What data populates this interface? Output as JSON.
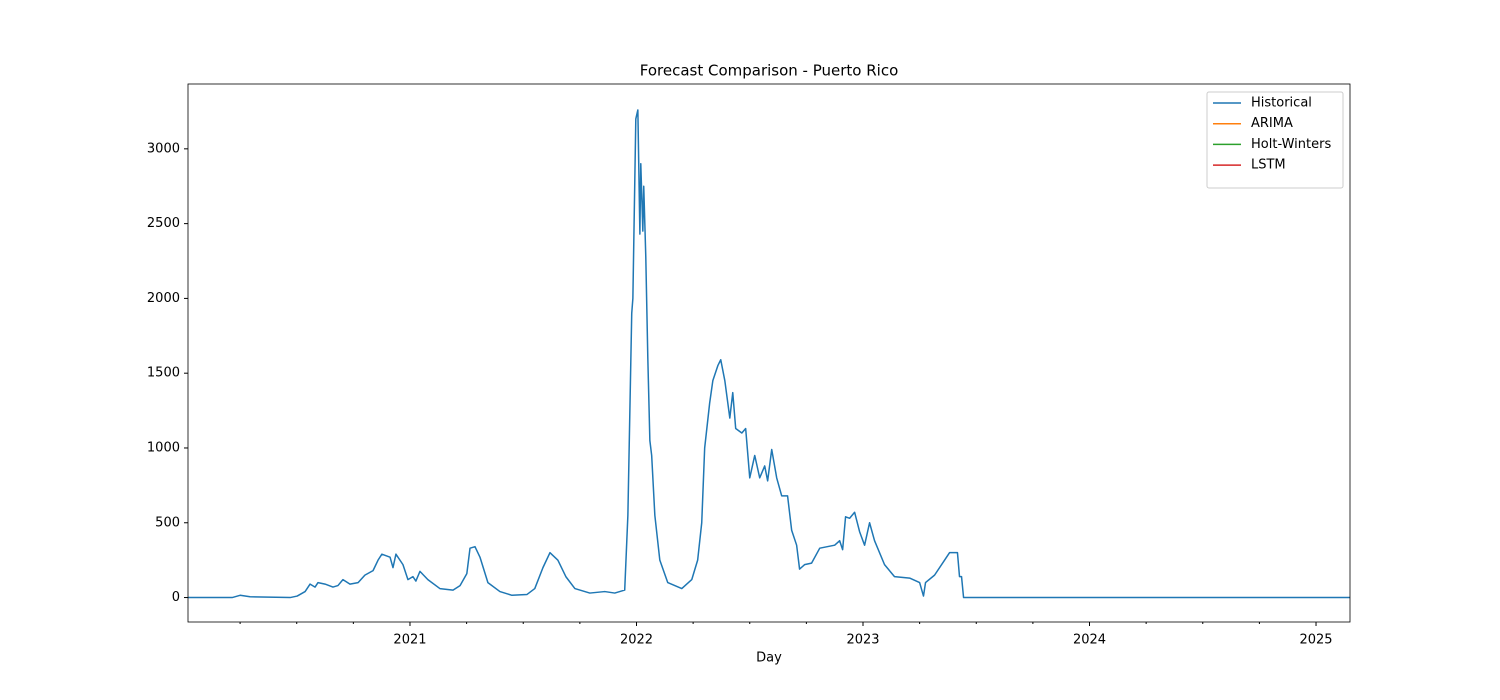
{
  "chart_data": {
    "type": "line",
    "title": "Forecast Comparison - Puerto Rico",
    "x_label": "Day",
    "xlim": [
      2020.02,
      2025.15
    ],
    "ylim": [
      -163.5,
      3433.5
    ],
    "xticks": [
      2021,
      2022,
      2023,
      2024,
      2025
    ],
    "xminorticks": [
      2020.25,
      2020.5,
      2020.75,
      2021.25,
      2021.5,
      2021.75,
      2022.25,
      2022.5,
      2022.75,
      2023.25,
      2023.5,
      2023.75,
      2024.25,
      2024.5,
      2024.75
    ],
    "yticks": [
      0,
      500,
      1000,
      1500,
      2000,
      2500,
      3000
    ],
    "legend": "upper right",
    "series": [
      {
        "name": "Historical",
        "color": "#1f77b4",
        "x": [
          2020.02,
          2020.215,
          2020.25,
          2020.294,
          2020.471,
          2020.502,
          2020.537,
          2020.559,
          2020.581,
          2020.594,
          2020.625,
          2020.66,
          2020.682,
          2020.704,
          2020.735,
          2020.771,
          2020.801,
          2020.837,
          2020.859,
          2020.876,
          2020.912,
          2020.925,
          2020.938,
          2020.969,
          2020.991,
          2021.013,
          2021.026,
          2021.044,
          2021.079,
          2021.132,
          2021.19,
          2021.221,
          2021.251,
          2021.265,
          2021.287,
          2021.309,
          2021.344,
          2021.397,
          2021.45,
          2021.516,
          2021.551,
          2021.587,
          2021.618,
          2021.653,
          2021.688,
          2021.728,
          2021.794,
          2021.86,
          2021.904,
          2021.948,
          2021.962,
          2021.979,
          2021.984,
          2021.997,
          2022.006,
          2022.015,
          2022.019,
          2022.028,
          2022.032,
          2022.041,
          2022.05,
          2022.059,
          2022.067,
          2022.081,
          2022.103,
          2022.138,
          2022.2,
          2022.244,
          2022.27,
          2022.288,
          2022.301,
          2022.323,
          2022.337,
          2022.359,
          2022.372,
          2022.39,
          2022.412,
          2022.425,
          2022.438,
          2022.465,
          2022.482,
          2022.5,
          2022.522,
          2022.544,
          2022.566,
          2022.579,
          2022.597,
          2022.619,
          2022.641,
          2022.667,
          2022.685,
          2022.707,
          2022.72,
          2022.742,
          2022.773,
          2022.809,
          2022.875,
          2022.897,
          2022.91,
          2022.923,
          2022.941,
          2022.963,
          2022.985,
          2023.007,
          2023.029,
          2023.051,
          2023.095,
          2023.139,
          2023.206,
          2023.25,
          2023.267,
          2023.276,
          2023.316,
          2023.36,
          2023.382,
          2023.417,
          2023.426,
          2023.435,
          2023.444,
          2025.15
        ],
        "values": [
          0,
          0,
          15,
          5,
          0,
          10,
          40,
          90,
          70,
          100,
          90,
          70,
          80,
          120,
          90,
          100,
          150,
          180,
          250,
          290,
          270,
          200,
          290,
          220,
          120,
          140,
          110,
          175,
          120,
          60,
          50,
          80,
          160,
          330,
          340,
          270,
          100,
          40,
          15,
          20,
          60,
          200,
          300,
          250,
          140,
          60,
          30,
          40,
          30,
          50,
          550,
          1900,
          2000,
          3200,
          3260,
          2430,
          2900,
          2450,
          2750,
          2280,
          1600,
          1050,
          950,
          550,
          250,
          100,
          60,
          120,
          250,
          500,
          1000,
          1300,
          1450,
          1550,
          1590,
          1450,
          1200,
          1370,
          1130,
          1100,
          1130,
          800,
          950,
          800,
          880,
          780,
          990,
          800,
          680,
          680,
          450,
          350,
          190,
          220,
          230,
          330,
          350,
          380,
          320,
          540,
          530,
          570,
          440,
          350,
          500,
          380,
          220,
          140,
          130,
          100,
          10,
          100,
          150,
          250,
          300,
          300,
          140,
          140,
          0,
          0
        ]
      },
      {
        "name": "ARIMA",
        "color": "#ff7f0e",
        "x": [],
        "values": []
      },
      {
        "name": "Holt-Winters",
        "color": "#2ca02c",
        "x": [],
        "values": []
      },
      {
        "name": "LSTM",
        "color": "#d62728",
        "x": [],
        "values": []
      }
    ]
  }
}
